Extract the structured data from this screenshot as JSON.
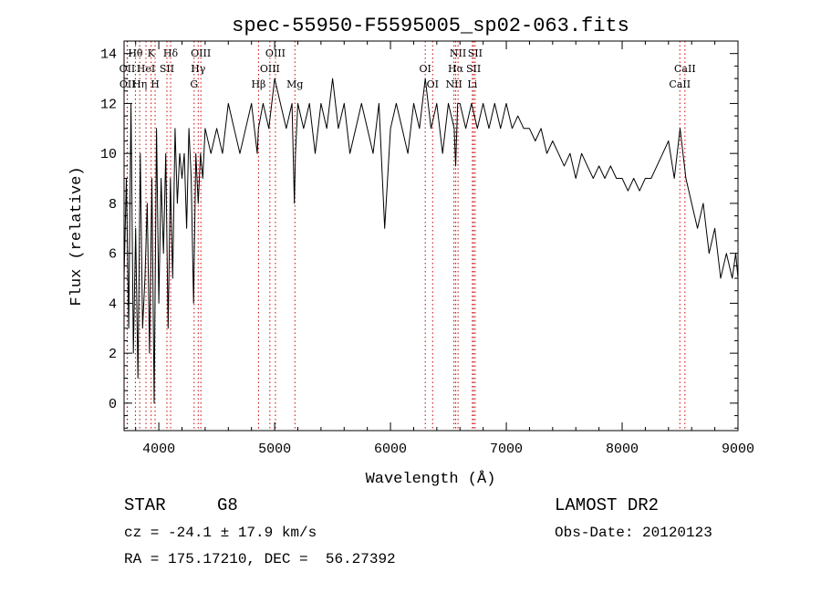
{
  "chart_data": {
    "type": "line",
    "title": "spec-55950-F5595005_sp02-063.fits",
    "xlabel": "Wavelength (Å)",
    "ylabel": "Flux (relative)",
    "xlim": [
      3700,
      9000
    ],
    "ylim": [
      -1.1,
      14.5
    ],
    "x_ticks": [
      4000,
      5000,
      6000,
      7000,
      8000,
      9000
    ],
    "y_ticks": [
      0,
      2,
      4,
      6,
      8,
      10,
      12,
      14
    ],
    "grid": false,
    "series": [
      {
        "x": [
          3700,
          3720,
          3740,
          3760,
          3780,
          3800,
          3820,
          3840,
          3860,
          3880,
          3900,
          3920,
          3940,
          3960,
          3980,
          4000,
          4020,
          4040,
          4060,
          4080,
          4100,
          4120,
          4140,
          4160,
          4180,
          4200,
          4220,
          4240,
          4260,
          4280,
          4300,
          4320,
          4340,
          4360,
          4380,
          4400,
          4450,
          4500,
          4550,
          4600,
          4650,
          4700,
          4750,
          4800,
          4850,
          4860,
          4900,
          4950,
          5000,
          5050,
          5100,
          5150,
          5170,
          5180,
          5200,
          5250,
          5300,
          5350,
          5400,
          5450,
          5500,
          5550,
          5600,
          5650,
          5700,
          5750,
          5800,
          5850,
          5900,
          5950,
          6000,
          6050,
          6100,
          6150,
          6200,
          6250,
          6300,
          6350,
          6400,
          6450,
          6500,
          6550,
          6563,
          6580,
          6600,
          6650,
          6700,
          6750,
          6800,
          6850,
          6900,
          6950,
          7000,
          7050,
          7100,
          7150,
          7200,
          7250,
          7300,
          7350,
          7400,
          7450,
          7500,
          7550,
          7600,
          7650,
          7700,
          7750,
          7800,
          7850,
          7900,
          7950,
          8000,
          8050,
          8100,
          8150,
          8200,
          8250,
          8300,
          8350,
          8400,
          8450,
          8500,
          8550,
          8600,
          8650,
          8700,
          8750,
          8800,
          8850,
          8900,
          8950,
          8980,
          9000
        ],
        "y": [
          5,
          9,
          3,
          12,
          2,
          7,
          1,
          10,
          3,
          5,
          8,
          2,
          9,
          0,
          11,
          4,
          9,
          6,
          10,
          3,
          9,
          5,
          11,
          8,
          10,
          9,
          10,
          7,
          11,
          9,
          4,
          10,
          8,
          10,
          9,
          11,
          10,
          11,
          10,
          12,
          11,
          10,
          11,
          12,
          10,
          11,
          12,
          11,
          13,
          12,
          11,
          12,
          8,
          10,
          12,
          11,
          12,
          10,
          12,
          11,
          13,
          11,
          12,
          10,
          11,
          12,
          11,
          10,
          12,
          7,
          11,
          12,
          11,
          10,
          12,
          11,
          13,
          11,
          12,
          10,
          12,
          11,
          9.5,
          12,
          12,
          11,
          12,
          11,
          12,
          11,
          12,
          11,
          12,
          11,
          11.5,
          11,
          11,
          10.5,
          11,
          10,
          10.5,
          10,
          9.5,
          10,
          9,
          10,
          9.5,
          9,
          9.5,
          9,
          9.5,
          9,
          9,
          8.5,
          9,
          8.5,
          9,
          9,
          9.5,
          10,
          10.5,
          9,
          11,
          9,
          8,
          7,
          8,
          6,
          7,
          5,
          6,
          5,
          6,
          5
        ]
      }
    ],
    "line_labels": [
      {
        "text": "Hθ",
        "x": 3798,
        "row": 1,
        "line": true
      },
      {
        "text": "K",
        "x": 3934,
        "row": 1,
        "line": true
      },
      {
        "text": "Hδ",
        "x": 4102,
        "row": 1,
        "line": true
      },
      {
        "text": "OIII",
        "x": 4363,
        "row": 1,
        "line": true
      },
      {
        "text": "OIII",
        "x": 5007,
        "row": 1,
        "line": true
      },
      {
        "text": "NII",
        "x": 6583,
        "row": 1,
        "line": true
      },
      {
        "text": "SII",
        "x": 6731,
        "row": 1,
        "line": true
      },
      {
        "text": "OII",
        "x": 3727,
        "row": 2,
        "line": true
      },
      {
        "text": "HeI",
        "x": 3889,
        "row": 2,
        "line": true
      },
      {
        "text": "SII",
        "x": 4070,
        "row": 2,
        "line": true
      },
      {
        "text": "Hγ",
        "x": 4340,
        "row": 2,
        "line": true
      },
      {
        "text": "OIII",
        "x": 4959,
        "row": 2,
        "line": true
      },
      {
        "text": "OI",
        "x": 6300,
        "row": 2,
        "line": true
      },
      {
        "text": "Hα",
        "x": 6563,
        "row": 2,
        "line": true
      },
      {
        "text": "SII",
        "x": 6717,
        "row": 2,
        "line": true
      },
      {
        "text": "CaII",
        "x": 8542,
        "row": 2,
        "line": true
      },
      {
        "text": "OII",
        "x": 3729,
        "row": 3,
        "line": true
      },
      {
        "text": "Hη",
        "x": 3835,
        "row": 3,
        "line": true
      },
      {
        "text": "H",
        "x": 3968,
        "row": 3,
        "line": true
      },
      {
        "text": "G",
        "x": 4305,
        "row": 3,
        "line": true
      },
      {
        "text": "Hβ",
        "x": 4861,
        "row": 3,
        "line": true
      },
      {
        "text": "Mg",
        "x": 5175,
        "row": 3,
        "line": true
      },
      {
        "text": "OI",
        "x": 6364,
        "row": 3,
        "line": true
      },
      {
        "text": "NII",
        "x": 6548,
        "row": 3,
        "line": true
      },
      {
        "text": "Li",
        "x": 6707,
        "row": 3,
        "line": true
      },
      {
        "text": "CaII",
        "x": 8498,
        "row": 3,
        "line": true
      }
    ]
  },
  "info": {
    "object_class": "STAR",
    "subclass": "G8",
    "survey": "LAMOST DR2",
    "cz": "cz = -24.1 ± 17.9 km/s",
    "obs_date": "Obs-Date: 20120123",
    "coords": "RA = 175.17210, DEC =  56.27392"
  },
  "colors": {
    "line_marker": "#cc0000",
    "spectrum": "#000000"
  }
}
